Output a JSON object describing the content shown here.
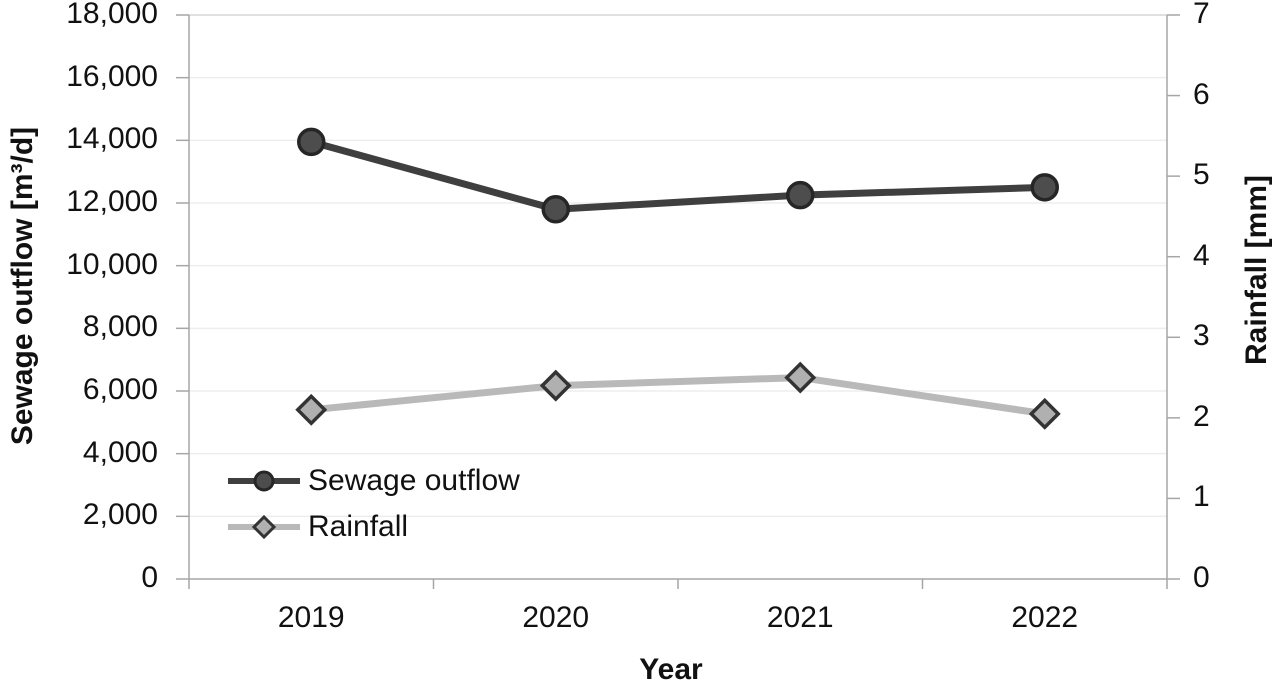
{
  "chart_data": {
    "type": "line",
    "title": "",
    "categories": [
      "2019",
      "2020",
      "2021",
      "2022"
    ],
    "xlabel": "Year",
    "grid": true,
    "legend_position": "inside-bottom-left",
    "left_axis": {
      "label": "Sewage outflow [m³/d]",
      "min": 0,
      "max": 18000,
      "tick_step": 2000,
      "tick_labels": [
        "0",
        "2,000",
        "4,000",
        "6,000",
        "8,000",
        "10,000",
        "12,000",
        "14,000",
        "16,000",
        "18,000"
      ]
    },
    "right_axis": {
      "label": "Rainfall [mm]",
      "min": 0,
      "max": 7,
      "tick_step": 1,
      "tick_labels": [
        "0",
        "1",
        "2",
        "3",
        "4",
        "5",
        "6",
        "7"
      ]
    },
    "series": [
      {
        "name": "Sewage outflow",
        "axis": "left",
        "values": [
          13950,
          11800,
          12250,
          12500
        ],
        "line_color": "#3f3f3f",
        "marker": "circle",
        "marker_fill": "#4d4d4d",
        "marker_stroke": "#262626"
      },
      {
        "name": "Rainfall",
        "axis": "right",
        "values": [
          2.1,
          2.4,
          2.5,
          2.05
        ],
        "line_color": "#b9b9b9",
        "marker": "diamond",
        "marker_fill": "#b0b0b0",
        "marker_stroke": "#333333"
      }
    ],
    "colors": {
      "gridline": "#ededed",
      "top_gridline": "#d6d6d6",
      "axis_line": "#a6a6a6",
      "text": "#111111"
    }
  }
}
